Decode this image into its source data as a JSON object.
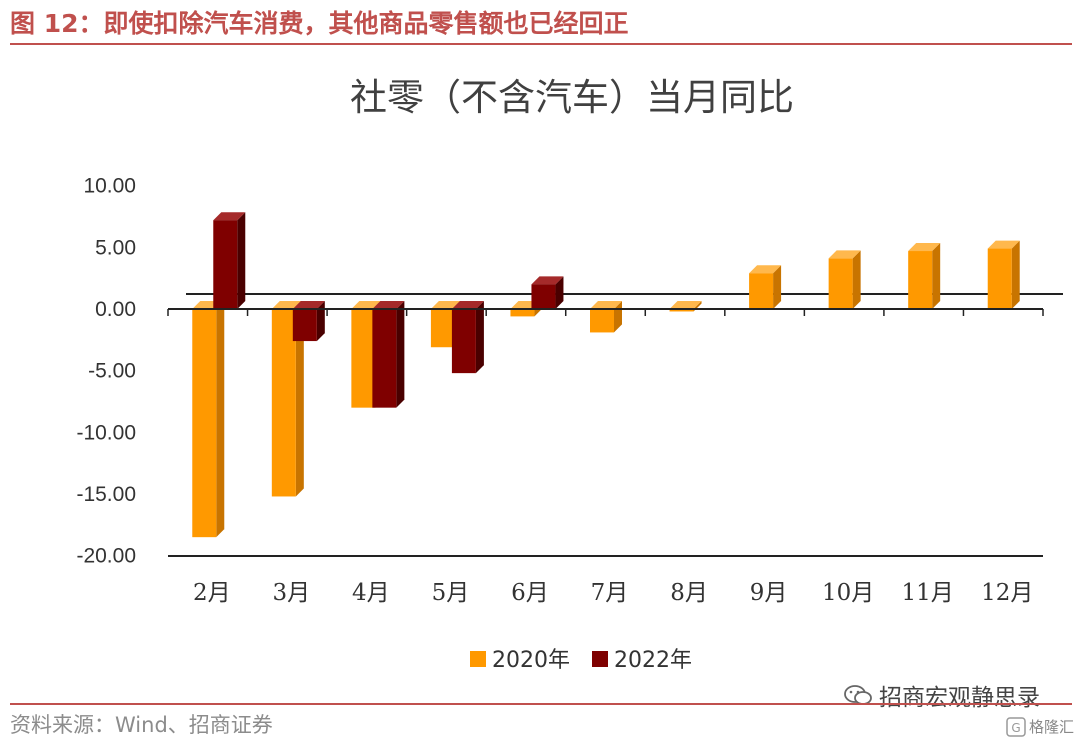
{
  "figure": {
    "title": "图 12：即使扣除汽车消费，其他商品零售额也已经回正",
    "source": "资料来源：Wind、招商证券",
    "brand": "招商宏观静思录",
    "watermark": "格隆汇"
  },
  "colors": {
    "accent": "#C0504D",
    "series_2020": "#FF9900",
    "series_2022": "#7F0000"
  },
  "chart_data": {
    "type": "bar",
    "title": "社零（不含汽车）当月同比",
    "categories": [
      "2月",
      "3月",
      "4月",
      "5月",
      "6月",
      "7月",
      "8月",
      "9月",
      "10月",
      "11月",
      "12月"
    ],
    "series": [
      {
        "name": "2020年",
        "values": [
          -18.5,
          -15.2,
          -8.0,
          -3.1,
          -0.6,
          -1.9,
          -0.2,
          2.9,
          4.1,
          4.7,
          4.9
        ]
      },
      {
        "name": "2022年",
        "values": [
          7.2,
          -2.6,
          -8.0,
          -5.2,
          2.0,
          null,
          null,
          null,
          null,
          null,
          null
        ]
      }
    ],
    "yticks": [
      "10.00",
      "5.00",
      "0.00",
      "-5.00",
      "-10.00",
      "-15.00",
      "-20.00"
    ],
    "ylim": [
      -20,
      10
    ],
    "legend": "bottom",
    "grid": false
  }
}
